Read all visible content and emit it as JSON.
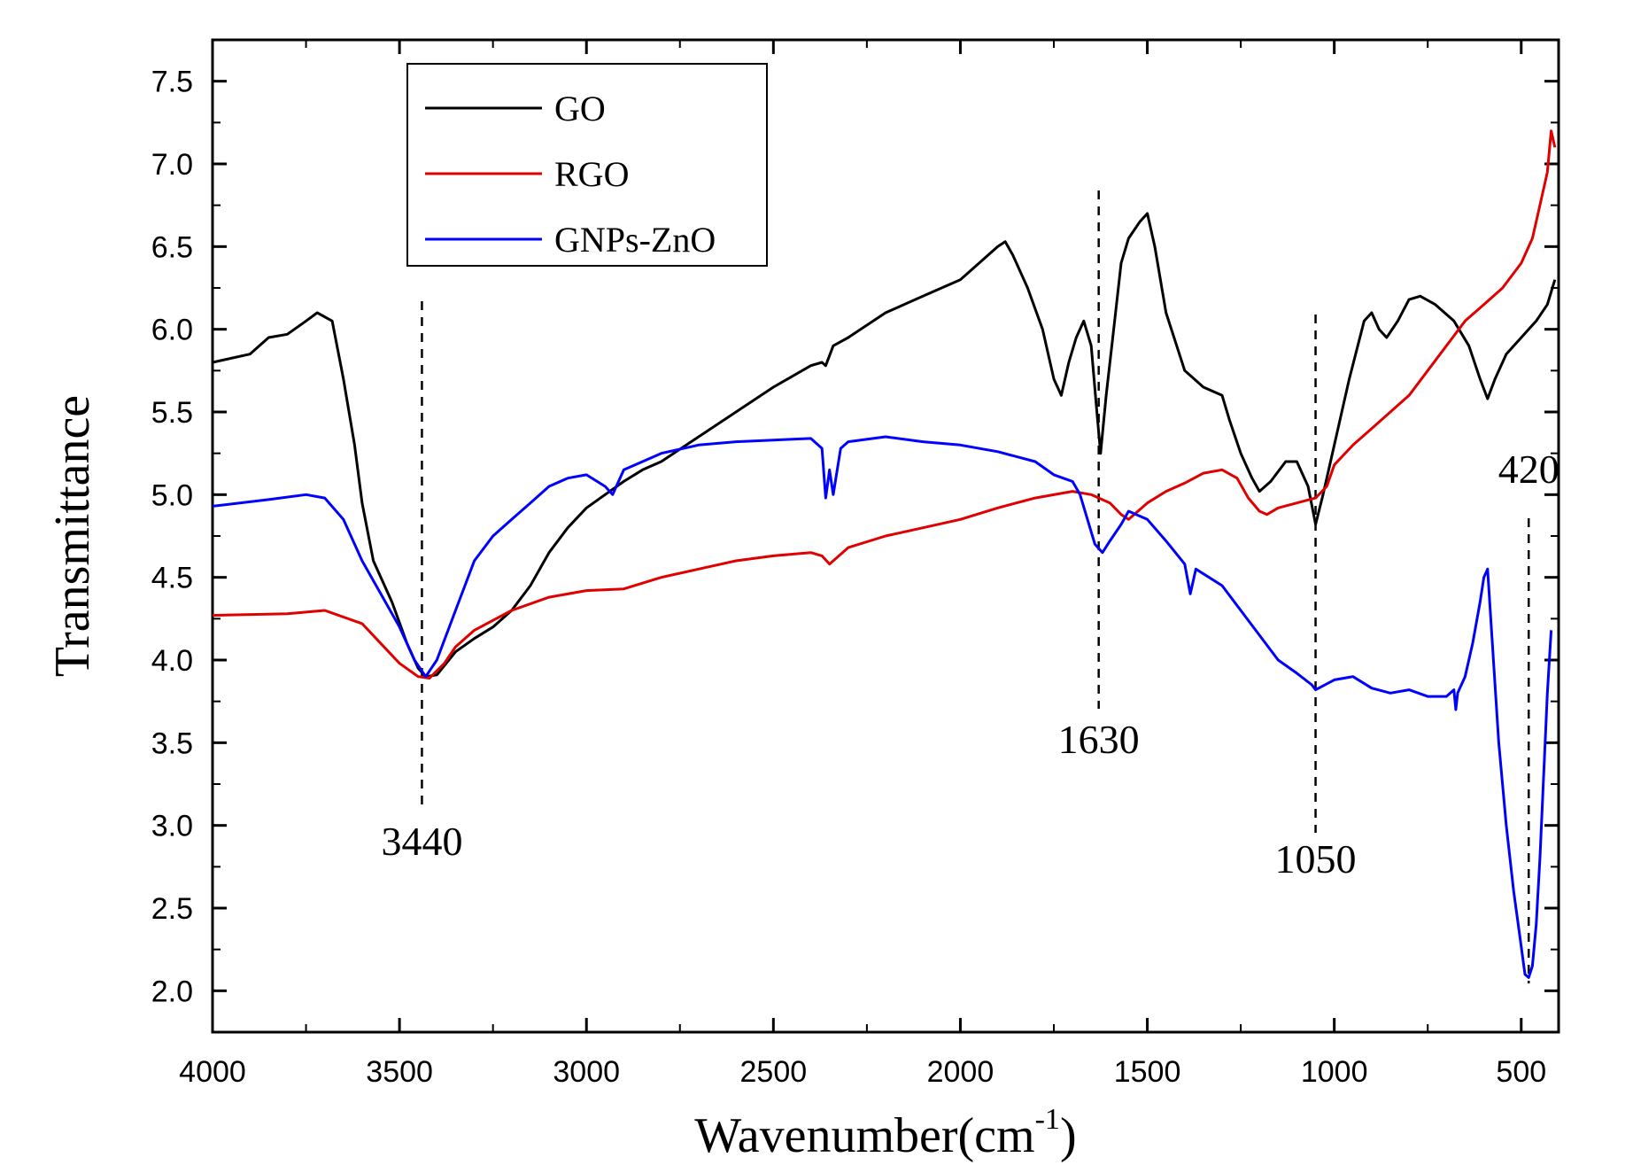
{
  "chart_data": {
    "type": "line",
    "title": "",
    "xlabel": "Wavenumber(cm",
    "xlabel_sup": "-1",
    "xlabel_end": ")",
    "ylabel": "Transmittance",
    "xlim": [
      4000,
      400
    ],
    "ylim": [
      1.75,
      7.75
    ],
    "x_ticks": [
      4000,
      3500,
      3000,
      2500,
      2000,
      1500,
      1000,
      500
    ],
    "x_tick_labels": [
      "4000",
      "3500",
      "3000",
      "2500",
      "2000",
      "1500",
      "1000",
      "500"
    ],
    "y_ticks": [
      2.0,
      2.5,
      3.0,
      3.5,
      4.0,
      4.5,
      5.0,
      5.5,
      6.0,
      6.5,
      7.0,
      7.5
    ],
    "y_tick_labels": [
      "2.0",
      "2.5",
      "3.0",
      "3.5",
      "4.0",
      "4.5",
      "5.0",
      "5.5",
      "6.0",
      "6.5",
      "7.0",
      "7.5"
    ],
    "grid": false,
    "legend_position": "top-left",
    "series": [
      {
        "name": "GO",
        "color": "#000000",
        "points": [
          [
            4000,
            5.8
          ],
          [
            3900,
            5.85
          ],
          [
            3850,
            5.95
          ],
          [
            3800,
            5.97
          ],
          [
            3750,
            6.05
          ],
          [
            3720,
            6.1
          ],
          [
            3680,
            6.05
          ],
          [
            3650,
            5.7
          ],
          [
            3620,
            5.3
          ],
          [
            3600,
            4.95
          ],
          [
            3570,
            4.6
          ],
          [
            3520,
            4.35
          ],
          [
            3480,
            4.1
          ],
          [
            3450,
            3.95
          ],
          [
            3430,
            3.9
          ],
          [
            3400,
            3.91
          ],
          [
            3350,
            4.05
          ],
          [
            3300,
            4.13
          ],
          [
            3250,
            4.2
          ],
          [
            3200,
            4.3
          ],
          [
            3150,
            4.45
          ],
          [
            3100,
            4.65
          ],
          [
            3050,
            4.8
          ],
          [
            3000,
            4.92
          ],
          [
            2950,
            5.0
          ],
          [
            2900,
            5.08
          ],
          [
            2850,
            5.15
          ],
          [
            2800,
            5.2
          ],
          [
            2700,
            5.35
          ],
          [
            2600,
            5.5
          ],
          [
            2500,
            5.65
          ],
          [
            2400,
            5.78
          ],
          [
            2370,
            5.8
          ],
          [
            2360,
            5.78
          ],
          [
            2340,
            5.9
          ],
          [
            2300,
            5.95
          ],
          [
            2200,
            6.1
          ],
          [
            2100,
            6.2
          ],
          [
            2000,
            6.3
          ],
          [
            1950,
            6.4
          ],
          [
            1900,
            6.5
          ],
          [
            1880,
            6.53
          ],
          [
            1860,
            6.45
          ],
          [
            1820,
            6.25
          ],
          [
            1780,
            6.0
          ],
          [
            1750,
            5.7
          ],
          [
            1730,
            5.6
          ],
          [
            1710,
            5.8
          ],
          [
            1690,
            5.95
          ],
          [
            1670,
            6.05
          ],
          [
            1650,
            5.9
          ],
          [
            1635,
            5.5
          ],
          [
            1625,
            5.25
          ],
          [
            1610,
            5.6
          ],
          [
            1590,
            6.0
          ],
          [
            1570,
            6.4
          ],
          [
            1550,
            6.55
          ],
          [
            1520,
            6.65
          ],
          [
            1500,
            6.7
          ],
          [
            1480,
            6.5
          ],
          [
            1450,
            6.1
          ],
          [
            1400,
            5.75
          ],
          [
            1350,
            5.65
          ],
          [
            1300,
            5.6
          ],
          [
            1280,
            5.45
          ],
          [
            1250,
            5.25
          ],
          [
            1220,
            5.1
          ],
          [
            1200,
            5.02
          ],
          [
            1170,
            5.08
          ],
          [
            1130,
            5.2
          ],
          [
            1100,
            5.2
          ],
          [
            1070,
            5.05
          ],
          [
            1050,
            4.82
          ],
          [
            1030,
            5.0
          ],
          [
            1000,
            5.3
          ],
          [
            960,
            5.7
          ],
          [
            920,
            6.05
          ],
          [
            900,
            6.1
          ],
          [
            880,
            6.0
          ],
          [
            860,
            5.95
          ],
          [
            830,
            6.05
          ],
          [
            800,
            6.18
          ],
          [
            770,
            6.2
          ],
          [
            730,
            6.15
          ],
          [
            680,
            6.05
          ],
          [
            640,
            5.9
          ],
          [
            610,
            5.7
          ],
          [
            590,
            5.58
          ],
          [
            570,
            5.7
          ],
          [
            540,
            5.85
          ],
          [
            500,
            5.95
          ],
          [
            460,
            6.05
          ],
          [
            430,
            6.15
          ],
          [
            410,
            6.3
          ]
        ]
      },
      {
        "name": "RGO",
        "color": "#e00000",
        "points": [
          [
            4000,
            4.27
          ],
          [
            3800,
            4.28
          ],
          [
            3700,
            4.3
          ],
          [
            3600,
            4.22
          ],
          [
            3550,
            4.1
          ],
          [
            3500,
            3.98
          ],
          [
            3450,
            3.9
          ],
          [
            3420,
            3.89
          ],
          [
            3380,
            3.98
          ],
          [
            3350,
            4.08
          ],
          [
            3300,
            4.18
          ],
          [
            3200,
            4.3
          ],
          [
            3100,
            4.38
          ],
          [
            3000,
            4.42
          ],
          [
            2900,
            4.43
          ],
          [
            2800,
            4.5
          ],
          [
            2700,
            4.55
          ],
          [
            2600,
            4.6
          ],
          [
            2500,
            4.63
          ],
          [
            2400,
            4.65
          ],
          [
            2370,
            4.63
          ],
          [
            2350,
            4.58
          ],
          [
            2300,
            4.68
          ],
          [
            2200,
            4.75
          ],
          [
            2100,
            4.8
          ],
          [
            2000,
            4.85
          ],
          [
            1900,
            4.92
          ],
          [
            1800,
            4.98
          ],
          [
            1700,
            5.02
          ],
          [
            1650,
            5.0
          ],
          [
            1600,
            4.95
          ],
          [
            1570,
            4.88
          ],
          [
            1550,
            4.85
          ],
          [
            1500,
            4.95
          ],
          [
            1450,
            5.02
          ],
          [
            1400,
            5.07
          ],
          [
            1350,
            5.13
          ],
          [
            1300,
            5.15
          ],
          [
            1260,
            5.1
          ],
          [
            1230,
            4.98
          ],
          [
            1200,
            4.9
          ],
          [
            1180,
            4.88
          ],
          [
            1150,
            4.92
          ],
          [
            1100,
            4.95
          ],
          [
            1050,
            4.98
          ],
          [
            1020,
            5.05
          ],
          [
            1000,
            5.18
          ],
          [
            950,
            5.3
          ],
          [
            900,
            5.4
          ],
          [
            850,
            5.5
          ],
          [
            800,
            5.6
          ],
          [
            750,
            5.75
          ],
          [
            700,
            5.9
          ],
          [
            650,
            6.05
          ],
          [
            600,
            6.15
          ],
          [
            550,
            6.25
          ],
          [
            500,
            6.4
          ],
          [
            470,
            6.55
          ],
          [
            450,
            6.75
          ],
          [
            430,
            6.95
          ],
          [
            420,
            7.2
          ],
          [
            410,
            7.1
          ]
        ]
      },
      {
        "name": "GNPs-ZnO",
        "color": "#0000ff",
        "points": [
          [
            4000,
            4.93
          ],
          [
            3850,
            4.97
          ],
          [
            3750,
            5.0
          ],
          [
            3700,
            4.98
          ],
          [
            3650,
            4.85
          ],
          [
            3600,
            4.6
          ],
          [
            3550,
            4.4
          ],
          [
            3500,
            4.2
          ],
          [
            3460,
            4.0
          ],
          [
            3430,
            3.9
          ],
          [
            3400,
            4.0
          ],
          [
            3350,
            4.3
          ],
          [
            3300,
            4.6
          ],
          [
            3250,
            4.75
          ],
          [
            3200,
            4.85
          ],
          [
            3150,
            4.95
          ],
          [
            3100,
            5.05
          ],
          [
            3050,
            5.1
          ],
          [
            3000,
            5.12
          ],
          [
            2950,
            5.05
          ],
          [
            2930,
            5.0
          ],
          [
            2900,
            5.15
          ],
          [
            2850,
            5.2
          ],
          [
            2800,
            5.25
          ],
          [
            2700,
            5.3
          ],
          [
            2600,
            5.32
          ],
          [
            2500,
            5.33
          ],
          [
            2400,
            5.34
          ],
          [
            2370,
            5.28
          ],
          [
            2360,
            4.98
          ],
          [
            2350,
            5.15
          ],
          [
            2340,
            5.0
          ],
          [
            2320,
            5.28
          ],
          [
            2300,
            5.32
          ],
          [
            2200,
            5.35
          ],
          [
            2100,
            5.32
          ],
          [
            2000,
            5.3
          ],
          [
            1900,
            5.26
          ],
          [
            1800,
            5.2
          ],
          [
            1750,
            5.12
          ],
          [
            1700,
            5.08
          ],
          [
            1680,
            5.0
          ],
          [
            1660,
            4.85
          ],
          [
            1640,
            4.7
          ],
          [
            1620,
            4.65
          ],
          [
            1600,
            4.72
          ],
          [
            1570,
            4.82
          ],
          [
            1550,
            4.9
          ],
          [
            1500,
            4.85
          ],
          [
            1450,
            4.72
          ],
          [
            1400,
            4.58
          ],
          [
            1385,
            4.4
          ],
          [
            1370,
            4.55
          ],
          [
            1300,
            4.45
          ],
          [
            1250,
            4.3
          ],
          [
            1200,
            4.15
          ],
          [
            1150,
            4.0
          ],
          [
            1100,
            3.92
          ],
          [
            1060,
            3.85
          ],
          [
            1050,
            3.82
          ],
          [
            1000,
            3.88
          ],
          [
            950,
            3.9
          ],
          [
            900,
            3.83
          ],
          [
            850,
            3.8
          ],
          [
            800,
            3.82
          ],
          [
            750,
            3.78
          ],
          [
            700,
            3.78
          ],
          [
            680,
            3.82
          ],
          [
            675,
            3.7
          ],
          [
            670,
            3.8
          ],
          [
            650,
            3.9
          ],
          [
            630,
            4.1
          ],
          [
            610,
            4.35
          ],
          [
            600,
            4.5
          ],
          [
            590,
            4.55
          ],
          [
            580,
            4.2
          ],
          [
            560,
            3.5
          ],
          [
            540,
            3.0
          ],
          [
            520,
            2.6
          ],
          [
            505,
            2.35
          ],
          [
            490,
            2.1
          ],
          [
            480,
            2.08
          ],
          [
            470,
            2.15
          ],
          [
            460,
            2.4
          ],
          [
            450,
            2.8
          ],
          [
            440,
            3.3
          ],
          [
            430,
            3.8
          ],
          [
            420,
            4.18
          ]
        ]
      }
    ],
    "annotations": [
      {
        "label": "3440",
        "x": 3440
      },
      {
        "label": "1630",
        "x": 1630
      },
      {
        "label": "1050",
        "x": 1050
      },
      {
        "label": "420",
        "x": 480
      }
    ]
  }
}
